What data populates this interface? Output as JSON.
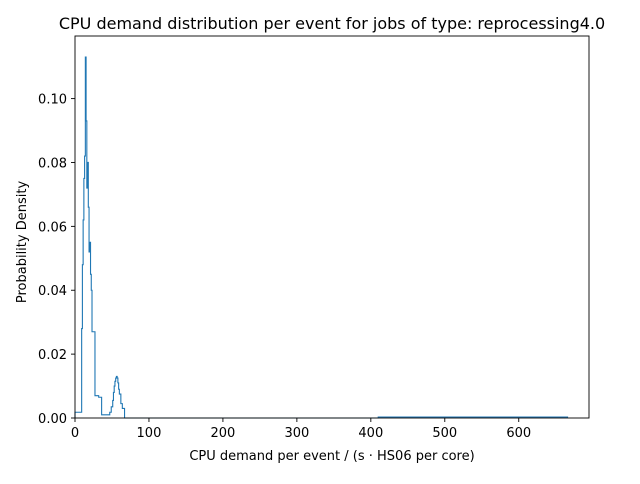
{
  "chart_data": {
    "type": "histogram-step",
    "title": "CPU demand distribution per event for jobs of type: reprocessing4.0",
    "xlabel": "CPU demand per event / (s · HS06 per core)",
    "ylabel": "Probability Density",
    "xlim": [
      0,
      695
    ],
    "ylim": [
      0,
      0.1196
    ],
    "xticks": [
      0,
      100,
      200,
      300,
      400,
      500,
      600
    ],
    "yticks": [
      0.0,
      0.02,
      0.04,
      0.06,
      0.08,
      0.1
    ],
    "ytick_labels": [
      "0.00",
      "0.02",
      "0.04",
      "0.06",
      "0.08",
      "0.10"
    ],
    "grid": false,
    "line_color": "#1f77b4",
    "series": [
      {
        "x": [
          0,
          9,
          10,
          11,
          12,
          13,
          14,
          15,
          16,
          17,
          18,
          19,
          20,
          21,
          22,
          23,
          27,
          32,
          36,
          42,
          47,
          49,
          51,
          52,
          53,
          54,
          55,
          56,
          57,
          58,
          59,
          60,
          62,
          64,
          67,
          410,
          666
        ],
        "y": [
          0.0018,
          0.028,
          0.048,
          0.062,
          0.075,
          0.082,
          0.113,
          0.093,
          0.072,
          0.08,
          0.066,
          0.052,
          0.055,
          0.045,
          0.04,
          0.027,
          0.007,
          0.0065,
          0.001,
          0.001,
          0.0018,
          0.0035,
          0.0055,
          0.008,
          0.01,
          0.0115,
          0.0125,
          0.013,
          0.0125,
          0.011,
          0.009,
          0.0075,
          0.0045,
          0.003,
          0.0,
          0.0003,
          0
        ]
      }
    ]
  }
}
